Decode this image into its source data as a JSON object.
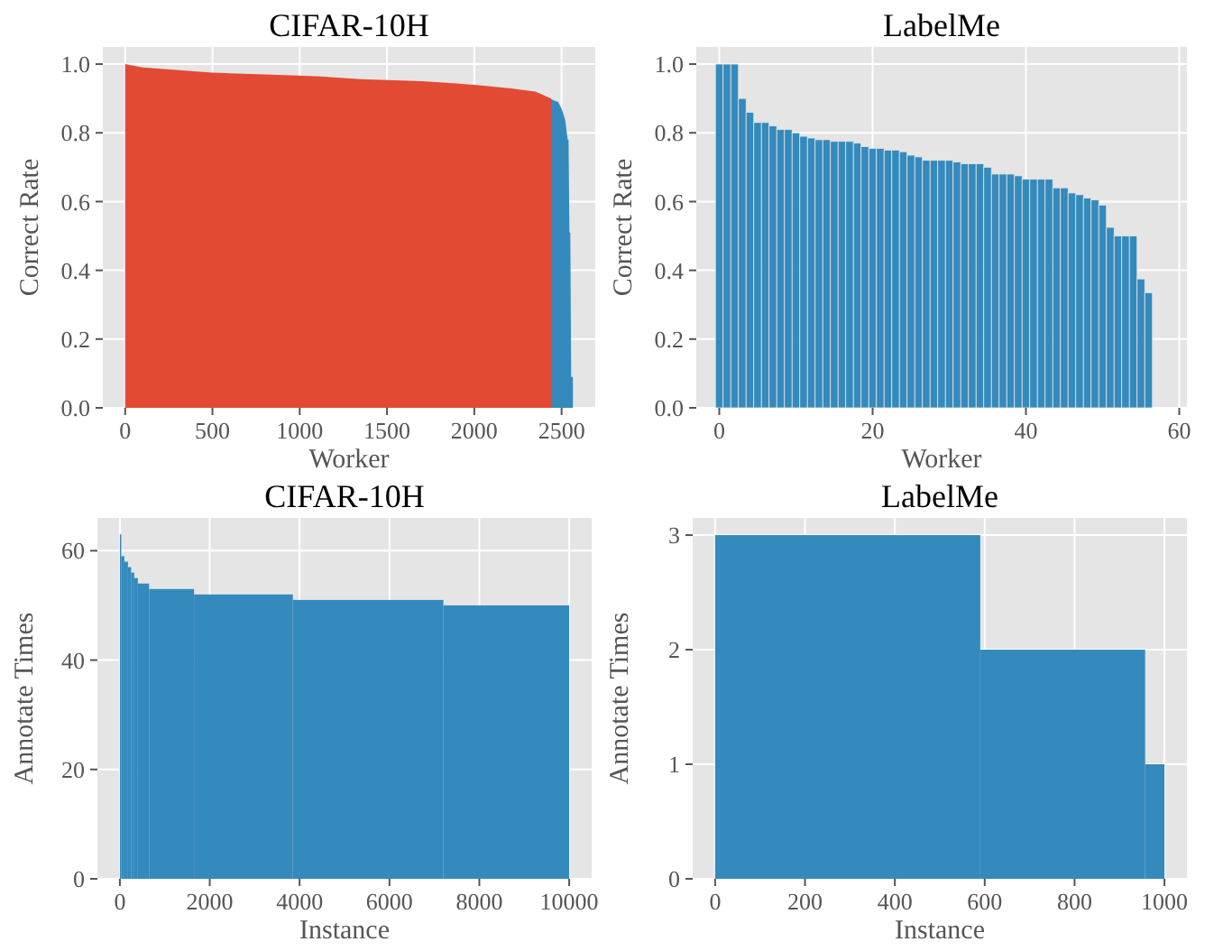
{
  "chart_data": [
    {
      "type": "area",
      "title": "CIFAR-10H",
      "xlabel": "Worker",
      "ylabel": "Correct Rate",
      "xlim": [
        -128,
        2693
      ],
      "ylim": [
        0,
        1.05
      ],
      "xticks": [
        0,
        500,
        1000,
        1500,
        2000,
        2500
      ],
      "yticks": [
        {
          "value": 0,
          "label": "0.0"
        },
        {
          "value": 0.2,
          "label": "0.2"
        },
        {
          "value": 0.4,
          "label": "0.4"
        },
        {
          "value": 0.6,
          "label": "0.6"
        },
        {
          "value": 0.8,
          "label": "0.8"
        },
        {
          "value": 1,
          "label": "1.0"
        }
      ],
      "grid": true,
      "series": [
        {
          "color": "#348abd",
          "x": [
            2430,
            2480,
            2500,
            2520,
            2535,
            2540,
            2545,
            2550,
            2555,
            2565
          ],
          "values": [
            0.9,
            0.89,
            0.87,
            0.84,
            0.78,
            0.78,
            0.51,
            0.51,
            0.09,
            0.09
          ]
        },
        {
          "color": "#e24a33",
          "x": [
            0,
            100,
            500,
            800,
            1100,
            1350,
            1700,
            2000,
            2200,
            2350,
            2440
          ],
          "values": [
            1.0,
            0.99,
            0.975,
            0.97,
            0.965,
            0.956,
            0.95,
            0.94,
            0.93,
            0.92,
            0.9
          ]
        }
      ]
    },
    {
      "type": "bar",
      "title": "LabelMe",
      "xlabel": "Worker",
      "ylabel": "Correct Rate",
      "xlim": [
        -3,
        61
      ],
      "ylim": [
        0,
        1.05
      ],
      "xticks": [
        0,
        20,
        40,
        60
      ],
      "yticks": [
        {
          "value": 0,
          "label": "0.0"
        },
        {
          "value": 0.2,
          "label": "0.2"
        },
        {
          "value": 0.4,
          "label": "0.4"
        },
        {
          "value": 0.6,
          "label": "0.6"
        },
        {
          "value": 0.8,
          "label": "0.8"
        },
        {
          "value": 1,
          "label": "1.0"
        }
      ],
      "grid": true,
      "color": "#348abd",
      "x": [
        0,
        1,
        2,
        3,
        4,
        5,
        6,
        7,
        8,
        9,
        10,
        11,
        12,
        13,
        14,
        15,
        16,
        17,
        18,
        19,
        20,
        21,
        22,
        23,
        24,
        25,
        26,
        27,
        28,
        29,
        30,
        31,
        32,
        33,
        34,
        35,
        36,
        37,
        38,
        39,
        40,
        41,
        42,
        43,
        44,
        45,
        46,
        47,
        48,
        49,
        50,
        51,
        52,
        53,
        54,
        55,
        56
      ],
      "values": [
        1.0,
        1.0,
        1.0,
        0.9,
        0.86,
        0.83,
        0.83,
        0.82,
        0.81,
        0.81,
        0.8,
        0.79,
        0.785,
        0.78,
        0.78,
        0.775,
        0.775,
        0.775,
        0.77,
        0.76,
        0.755,
        0.755,
        0.75,
        0.75,
        0.745,
        0.735,
        0.73,
        0.72,
        0.72,
        0.72,
        0.72,
        0.715,
        0.71,
        0.71,
        0.71,
        0.7,
        0.68,
        0.68,
        0.68,
        0.675,
        0.665,
        0.665,
        0.665,
        0.665,
        0.64,
        0.64,
        0.625,
        0.62,
        0.61,
        0.605,
        0.59,
        0.525,
        0.5,
        0.5,
        0.5,
        0.375,
        0.335
      ]
    },
    {
      "type": "histogram",
      "title": "CIFAR-10H",
      "xlabel": "Instance",
      "ylabel": "Annotate Times",
      "xlim": [
        -500,
        10500
      ],
      "ylim": [
        0,
        66
      ],
      "xticks": [
        0,
        2000,
        4000,
        6000,
        8000,
        10000
      ],
      "yticks": [
        0,
        20,
        40,
        60
      ],
      "grid": true,
      "color": "#348abd",
      "bins": [
        0,
        30,
        100,
        180,
        250,
        320,
        400,
        650,
        1650,
        3850,
        7200,
        10000
      ],
      "values": [
        63,
        59,
        58,
        57,
        56,
        55,
        54,
        53,
        52,
        51,
        50
      ]
    },
    {
      "type": "histogram",
      "title": "LabelMe",
      "xlabel": "Instance",
      "ylabel": "Annotate Times",
      "xlim": [
        -50,
        1050
      ],
      "ylim": [
        0,
        3.15
      ],
      "xticks": [
        0,
        200,
        400,
        600,
        800,
        1000
      ],
      "yticks": [
        0,
        1,
        2,
        3
      ],
      "grid": true,
      "color": "#348abd",
      "bins": [
        0,
        590,
        957,
        1000
      ],
      "values": [
        3,
        2,
        1
      ]
    }
  ]
}
